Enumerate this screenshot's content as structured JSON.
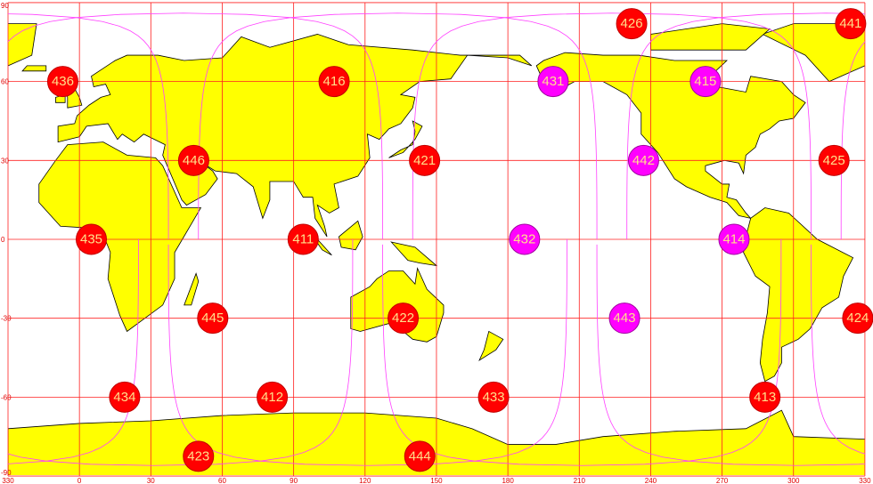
{
  "map": {
    "projection": "equirectangular",
    "lon_range": [
      -30,
      330
    ],
    "lat_range": [
      -90,
      90
    ],
    "x_tick_labels": [
      "330",
      "0",
      "30",
      "60",
      "90",
      "120",
      "150",
      "180",
      "210",
      "240",
      "270",
      "300",
      "330"
    ],
    "y_tick_labels": [
      "90",
      "60",
      "30",
      "0",
      "-30",
      "-60",
      "-90"
    ],
    "colors": {
      "land": "#ffff00",
      "coast": "#000000",
      "grid": "#ff2020",
      "track": "#ff40ff",
      "sat_red": "#ff0000",
      "sat_magenta": "#ff00ff",
      "sat_text": "#ffe08a",
      "sea": "#ffffff"
    }
  },
  "satellites": [
    {
      "label": "441",
      "lon": 324,
      "lat": 82,
      "color": "red"
    },
    {
      "label": "426",
      "lon": 232,
      "lat": 82,
      "color": "red"
    },
    {
      "label": "436",
      "lon": -7,
      "lat": 60,
      "color": "red"
    },
    {
      "label": "416",
      "lon": 107,
      "lat": 60,
      "color": "red"
    },
    {
      "label": "431",
      "lon": 199,
      "lat": 60,
      "color": "magenta"
    },
    {
      "label": "415",
      "lon": 263,
      "lat": 60,
      "color": "magenta"
    },
    {
      "label": "446",
      "lon": 48,
      "lat": 30,
      "color": "red"
    },
    {
      "label": "421",
      "lon": 145,
      "lat": 30,
      "color": "red"
    },
    {
      "label": "442",
      "lon": 237,
      "lat": 30,
      "color": "magenta"
    },
    {
      "label": "425",
      "lon": 317,
      "lat": 30,
      "color": "red"
    },
    {
      "label": "435",
      "lon": 5,
      "lat": 0,
      "color": "red"
    },
    {
      "label": "411",
      "lon": 94,
      "lat": 0,
      "color": "red"
    },
    {
      "label": "432",
      "lon": 187,
      "lat": 0,
      "color": "magenta"
    },
    {
      "label": "414",
      "lon": 275,
      "lat": 0,
      "color": "magenta"
    },
    {
      "label": "445",
      "lon": 56,
      "lat": -30,
      "color": "red"
    },
    {
      "label": "422",
      "lon": 136,
      "lat": -30,
      "color": "red"
    },
    {
      "label": "443",
      "lon": 229,
      "lat": -30,
      "color": "magenta"
    },
    {
      "label": "424",
      "lon": 327,
      "lat": -30,
      "color": "red"
    },
    {
      "label": "434",
      "lon": 19,
      "lat": -60,
      "color": "red"
    },
    {
      "label": "412",
      "lon": 81,
      "lat": -60,
      "color": "red"
    },
    {
      "label": "433",
      "lon": 174,
      "lat": -60,
      "color": "red"
    },
    {
      "label": "413",
      "lon": 288,
      "lat": -60,
      "color": "red"
    },
    {
      "label": "423",
      "lon": 50,
      "lat": -82.5,
      "color": "red"
    },
    {
      "label": "444",
      "lon": 143,
      "lat": -82.5,
      "color": "red"
    }
  ]
}
